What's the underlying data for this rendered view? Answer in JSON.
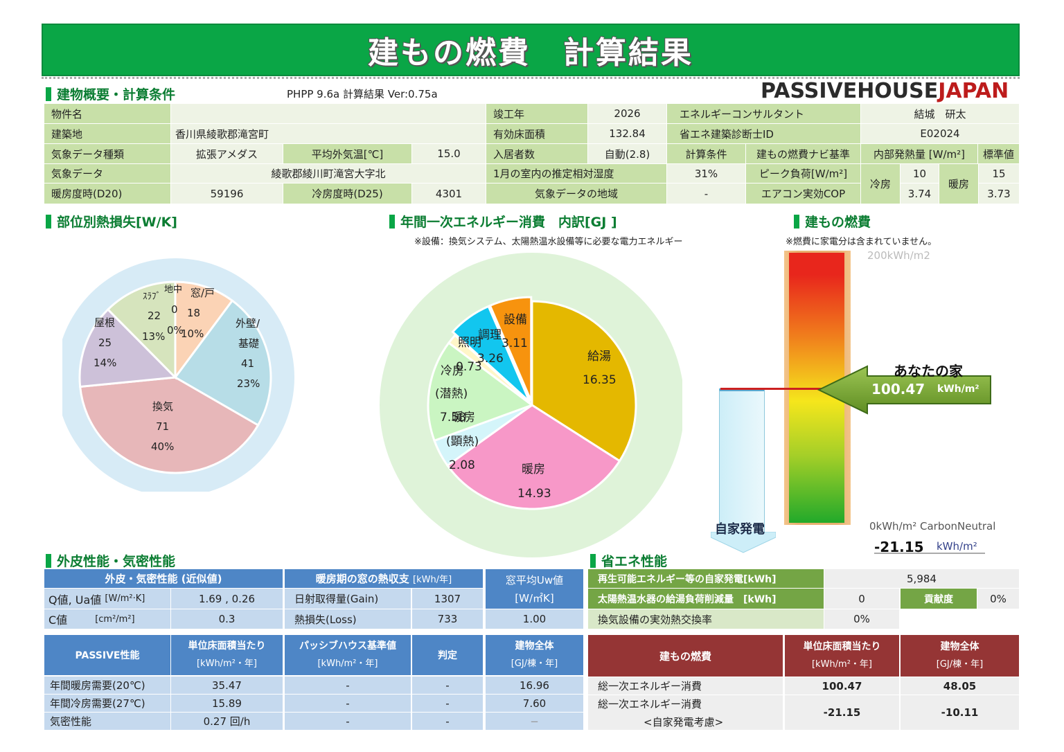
{
  "banner": {
    "title": "建もの燃費　計算結果"
  },
  "header": {
    "section_title": "建物概要・計算条件",
    "version": "PHPP 9.6a  計算結果 Ver:0.75a",
    "brand_part1": "PASSIVEHOUSE",
    "brand_part2": "JAPAN"
  },
  "overview": {
    "property_label": "物件名",
    "property_value": "",
    "site_label": "建築地",
    "site_value": "香川県綾歌郡滝宮町",
    "climate_type_label": "気象データ種類",
    "climate_type_value": "拡張アメダス",
    "avg_temp_label": "平均外気温[℃]",
    "avg_temp_value": "15.0",
    "climate_label": "気象データ",
    "climate_value": "綾歌郡綾川町滝宮大字北",
    "hdd_label": "暖房度時(D20)",
    "hdd_value": "59196",
    "cdd_label": "冷房度時(D25)",
    "cdd_value": "4301",
    "completion_label": "竣工年",
    "completion_value": "2026",
    "floor_area_label": "有効床面積",
    "floor_area_value": "132.84",
    "occupants_label": "入居者数",
    "occupants_value": "自動(2.8)",
    "humidity_label": "1月の室内の推定相対湿度",
    "humidity_value": "31%",
    "climate_region_label": "気象データの地域",
    "climate_region_value": "-",
    "consultant_label": "エネルギーコンサルタント",
    "consultant_value": "結城　研太",
    "id_label": "省エネ建築診断士ID",
    "id_value": "E02024",
    "calc_label": "計算条件",
    "calc_value": "建もの燃費ナビ基準",
    "internal_gain_label": "内部発熱量 [W/m²]",
    "internal_gain_value": "標準値",
    "peak_label": "ピーク負荷[W/m²]",
    "cop_label": "エアコン実効COP",
    "cooling_label": "冷房",
    "heating_label": "暖房",
    "peak_cooling": "10",
    "peak_heating": "15",
    "cop_cooling": "3.74",
    "cop_heating": "3.73"
  },
  "sections": {
    "heat_loss": "部位別熱損失[W/K]",
    "energy": "年間一次エネルギー消費　内訳[GJ ]",
    "energy_note": "※設備：換気システム、太陽熱温水設備等に必要な電力エネルギー",
    "fuel": "建もの燃費",
    "fuel_note": "※燃費に家電分は含まれていません。",
    "envelope": "外皮性能・気密性能",
    "saving": "省エネ性能"
  },
  "heat_loss_pie": {
    "labels": [
      {
        "name": "窓/戸",
        "value": "18",
        "pct": "10%"
      },
      {
        "name": "外壁/",
        "name2": "基礎",
        "value": "41",
        "pct": "23%"
      },
      {
        "name": "換気",
        "value": "71",
        "pct": "40%"
      },
      {
        "name": "屋根",
        "value": "25",
        "pct": "14%"
      },
      {
        "name": "ｽﾗﾌﾞ",
        "value": "22",
        "pct": "13%"
      },
      {
        "name": "地中",
        "value": "0",
        "pct": "0%"
      }
    ]
  },
  "energy_pie_labels": [
    {
      "name": "給湯",
      "value": "16.35"
    },
    {
      "name": "暖房",
      "value": "14.93"
    },
    {
      "name": "暖房",
      "name2": "(顕熱)",
      "value": "2.08"
    },
    {
      "name": "冷房",
      "name2": "(潜熱)",
      "value": "7.58"
    },
    {
      "name": "照明",
      "value": "0.73"
    },
    {
      "name": "調理",
      "value": "3.26"
    },
    {
      "name": "設備",
      "value": "3.11"
    }
  ],
  "fuel_gauge": {
    "top_label": "200kWh/m2",
    "bottom_label": "0kWh/m² CarbonNeutral",
    "your_home": "あなたの家",
    "your_value": "100.47",
    "your_unit": "kWh/m²",
    "self_gen_label": "自家発電",
    "self_gen_value": "-21.15",
    "self_gen_unit": "kWh/m²",
    "colors": {
      "top": "#e8261c",
      "mid": "#f5e61c",
      "bottom": "#22a92a",
      "arrow": "#7aac32"
    }
  },
  "envelope": {
    "h1": "外皮・気密性能 (近似値)",
    "q_label": "Q値,  Ua値",
    "q_unit": "[W/m²·K]",
    "q_value": "1.69 , 0.26",
    "c_label": "C値",
    "c_unit": "[cm²/m²]",
    "c_value": "0.3",
    "h2": "暖房期の窓の熱収支",
    "h2_unit": "[kWh/年]",
    "gain_label": "日射取得量(Gain)",
    "gain_value": "1307",
    "loss_label": "熱損失(Loss)",
    "loss_value": "733",
    "uw_h1": "窓平均Uw値",
    "uw_h2": "[W/㎡K]",
    "uw_value": "1.00"
  },
  "passive": {
    "h_title": "PASSIVE性能",
    "h_unit1": "単位床面積当たり",
    "h_unit1b": "[kWh/m²・年]",
    "h_std": "パッシブハウス基準値",
    "h_stdb": "[kWh/m²・年]",
    "h_judge": "判定",
    "h_total": "建物全体",
    "h_totalb": "[GJ/棟・年]",
    "rows": [
      {
        "label": "年間暖房需要(20℃)",
        "unit": "35.47",
        "std": "-",
        "judge": "-",
        "total": "16.96"
      },
      {
        "label": "年間冷房需要(27℃)",
        "unit": "15.89",
        "std": "-",
        "judge": "-",
        "total": "7.60"
      },
      {
        "label": "気密性能",
        "unit": "0.27 回/h",
        "std": "-",
        "judge": "-",
        "total": "−"
      }
    ]
  },
  "saving": {
    "renew_label": "再生可能エネルギー等の自家発電[kWh]",
    "renew_value": "5,984",
    "solar_label": "太陽熱温水器の給湯負荷削減量　[kWh]",
    "solar_value": "0",
    "contrib_label": "貢献度",
    "contrib_value": "0%",
    "vent_label": "換気設備の実効熱交換率",
    "vent_value": "0%"
  },
  "fuel_table": {
    "h_title": "建もの燃費",
    "h_unit": "単位床面積当たり",
    "h_unitb": "[kWh/m²・年]",
    "h_total": "建物全体",
    "h_totalb": "[GJ/棟・年]",
    "r1_label": "総一次エネルギー消費",
    "r1_unit": "100.47",
    "r1_total": "48.05",
    "r2_label": "総一次エネルギー消費",
    "r2_label2": "<自家発電考慮>",
    "r2_unit": "-21.15",
    "r2_total": "-10.11"
  },
  "chart_data": [
    {
      "type": "pie",
      "title": "部位別熱損失[W/K]",
      "categories": [
        "窓/戸",
        "外壁/基礎",
        "換気",
        "屋根",
        "ｽﾗﾌﾞ",
        "地中"
      ],
      "values": [
        18,
        41,
        71,
        25,
        22,
        0
      ],
      "colors": [
        "#fbd3b5",
        "#b7dde7",
        "#e7b7b9",
        "#cdc1d9",
        "#d6e4bd",
        "#f0f0f0"
      ]
    },
    {
      "type": "pie",
      "title": "年間一次エネルギー消費　内訳[GJ ]",
      "categories": [
        "給湯",
        "暖房",
        "暖房(顕熱)",
        "冷房(潜熱)",
        "照明",
        "調理",
        "設備"
      ],
      "values": [
        16.35,
        14.93,
        2.08,
        7.58,
        0.73,
        3.26,
        3.11
      ],
      "colors": [
        "#e4b800",
        "#f798c8",
        "#d4f5fa",
        "#caf5c2",
        "#fff6c8",
        "#12c6ef",
        "#f7930e"
      ]
    }
  ]
}
